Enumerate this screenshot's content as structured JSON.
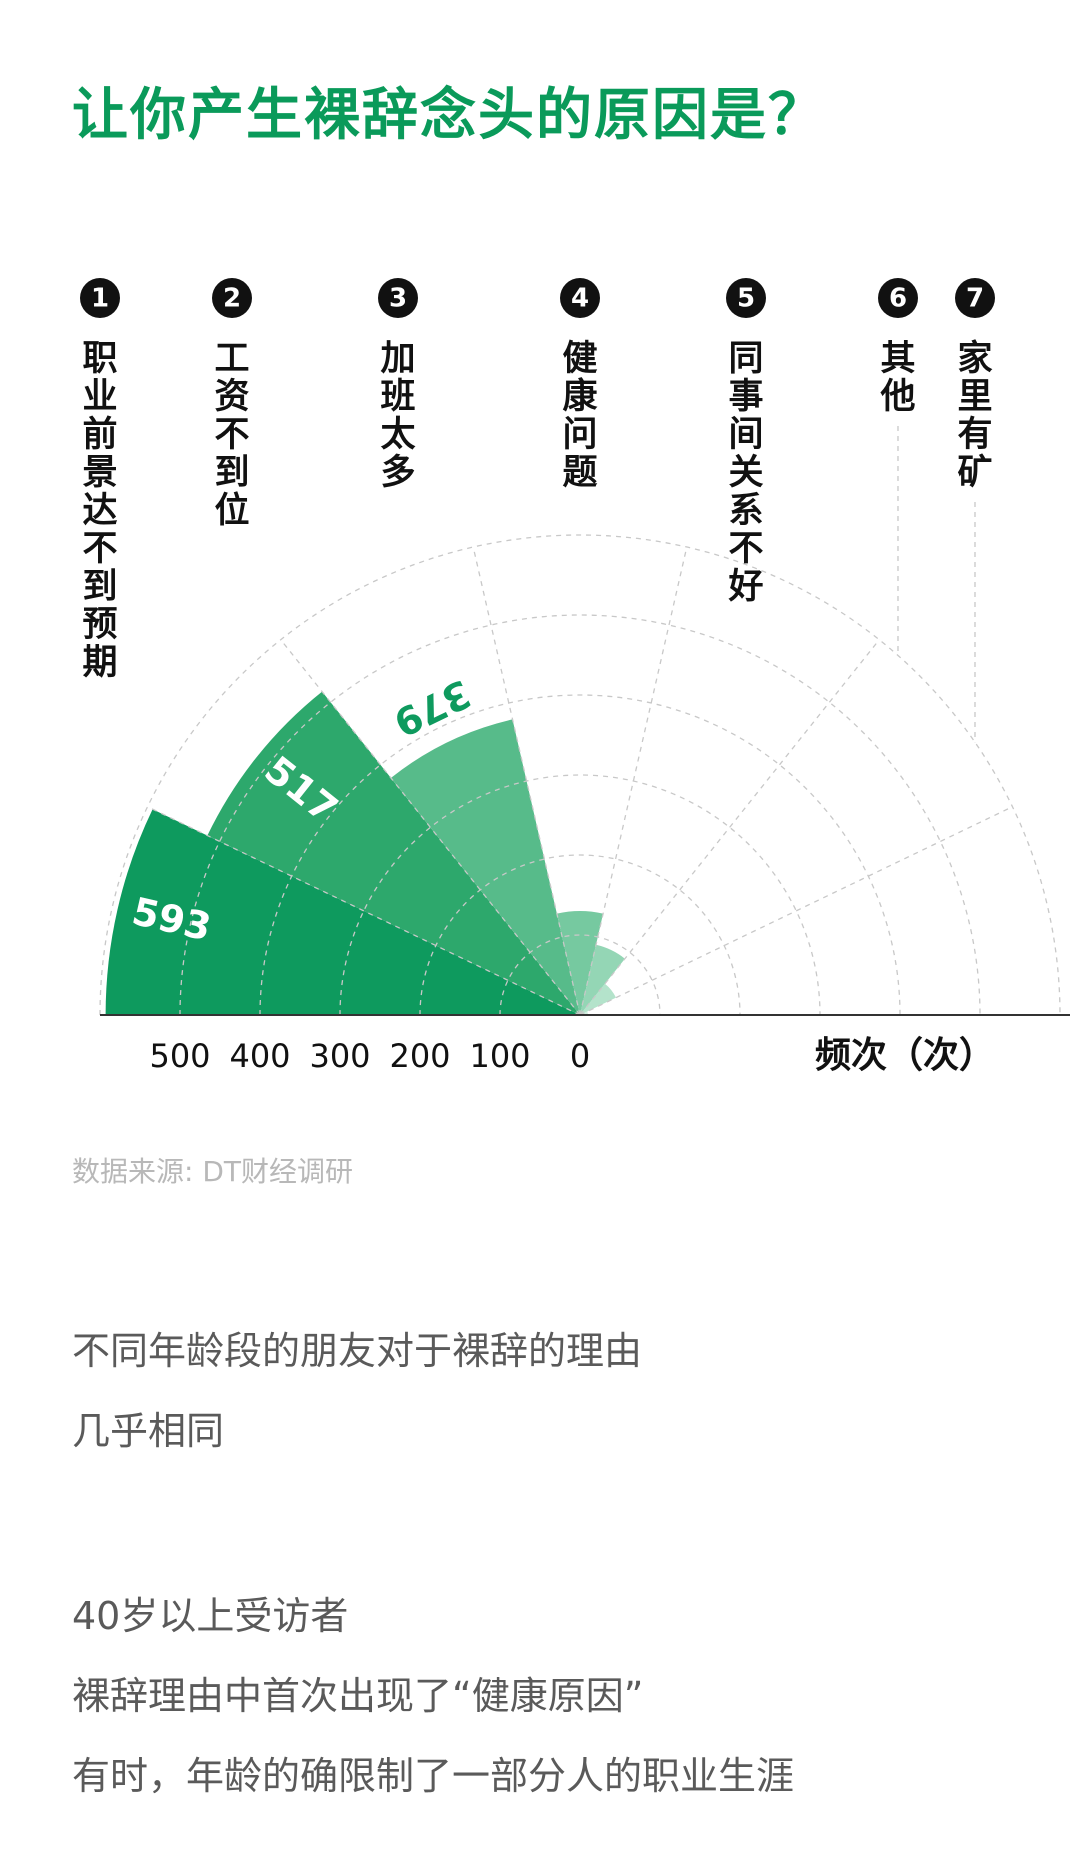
{
  "title": "让你产生裸辞念头的原因是？",
  "source": "数据来源: DT财经调研",
  "paragraphs": [
    "不同年龄段的朋友对于裸辞的理由",
    "几乎相同",
    "40岁以上受访者",
    "裸辞理由中首次出现了“健康原因”",
    "有时，年龄的确限制了一部分人的职业生涯"
  ],
  "chart_data": {
    "type": "polar-bar",
    "title": "让你产生裸辞念头的原因是？",
    "xlabel": "频次（次）",
    "ticks": [
      500,
      400,
      300,
      200,
      100,
      0
    ],
    "rmax": 600,
    "categories": [
      {
        "num": "1",
        "label": "职业前景达不到预期",
        "value": 593,
        "color": "#0e9a5e",
        "show_value": "593"
      },
      {
        "num": "2",
        "label": "工资不到位",
        "value": 517,
        "color": "#2da86c",
        "show_value": "517"
      },
      {
        "num": "3",
        "label": "加班太多",
        "value": 379,
        "color": "#57bb8a",
        "show_value": "379"
      },
      {
        "num": "4",
        "label": "健康问题",
        "value": 130,
        "color": "#76c9a0",
        "show_value": ""
      },
      {
        "num": "5",
        "label": "同事间关系不好",
        "value": 90,
        "color": "#94d6b5",
        "show_value": ""
      },
      {
        "num": "6",
        "label": "其他",
        "value": 50,
        "color": "#b4e3cb",
        "show_value": ""
      },
      {
        "num": "7",
        "label": "家里有矿",
        "value": 10,
        "color": "#d2efe0",
        "show_value": ""
      }
    ]
  }
}
